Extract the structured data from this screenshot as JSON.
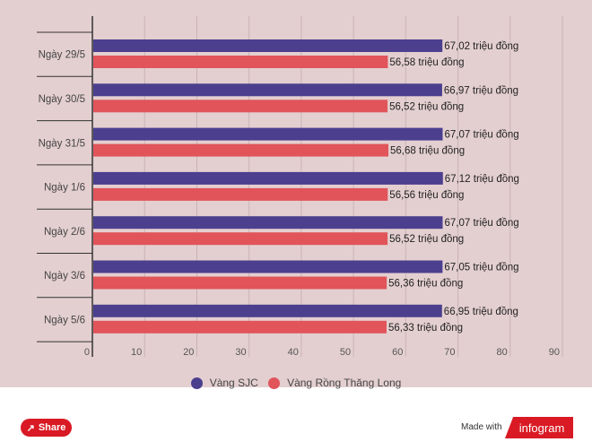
{
  "chart_data": {
    "type": "bar",
    "orientation": "horizontal",
    "categories": [
      "Ngày 29/5",
      "Ngày 30/5",
      "Ngày 31/5",
      "Ngày 1/6",
      "Ngày 2/6",
      "Ngày 3/6",
      "Ngày 5/6"
    ],
    "series": [
      {
        "name": "Vàng SJC",
        "color": "#4b3f8e",
        "values": [
          67.02,
          66.97,
          67.07,
          67.12,
          67.07,
          67.05,
          66.95
        ],
        "labels": [
          "67,02 triệu đồng",
          "66,97 triệu đồng",
          "67,07 triệu đồng",
          "67,12 triệu đồng",
          "67,07 triệu đồng",
          "67,05 triệu đồng",
          "66,95 triệu đồng"
        ]
      },
      {
        "name": "Vàng Rồng Thăng Long",
        "color": "#e0545a",
        "values": [
          56.58,
          56.52,
          56.68,
          56.56,
          56.52,
          56.36,
          56.33
        ],
        "labels": [
          "56,58 triệu đồng",
          "56,52 triệu đồng",
          "56,68 triệu đồng",
          "56,56 triệu đồng",
          "56,52 triệu đồng",
          "56,36 triệu đồng",
          "56,33 triệu đồng"
        ]
      }
    ],
    "xlim": [
      0,
      90
    ],
    "xticks": [
      "0",
      "10",
      "20",
      "30",
      "40",
      "50",
      "60",
      "70",
      "80",
      "90"
    ],
    "grid": true,
    "legend_position": "bottom"
  },
  "footer": {
    "share_label": "Share",
    "made_with": "Made with",
    "brand": "infogram"
  }
}
